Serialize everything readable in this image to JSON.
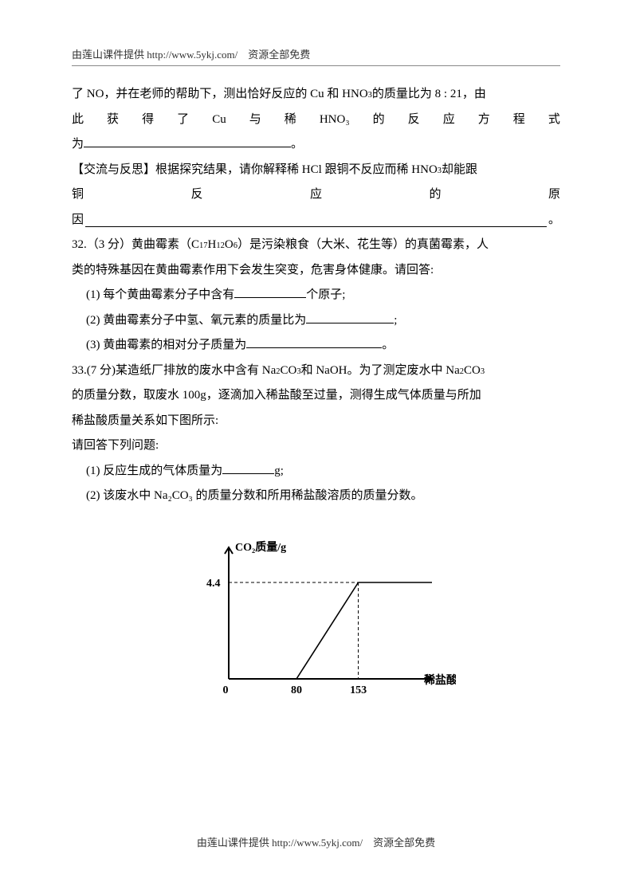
{
  "header_text": "由莲山课件提供 http://www.5ykj.com/　资源全部免费",
  "footer_text": "由莲山课件提供 http://www.5ykj.com/　资源全部免费",
  "p31": {
    "line1_prefix": "了 NO，并在老师的帮助下，测出恰好反应的 Cu 和 HNO",
    "line1_sub": "3",
    "line1_suffix": " 的质量比为 8 : 21，由",
    "line2_chars": [
      "此",
      "获",
      "得",
      "了",
      "Cu",
      "与",
      "稀",
      "HNO₃",
      "的",
      "反",
      "应",
      "方",
      "程",
      "式"
    ],
    "line3_prefix": "为",
    "line3_period": "。",
    "exchange_label": "【交流与反思】",
    "exchange_text_a": "根据探究结果，请你解释稀 HCl 跟铜不反应而稀 HNO",
    "exchange_sub": "3",
    "exchange_text_b": " 却能跟",
    "line5_chars": [
      "铜",
      "反",
      "应",
      "的",
      "原"
    ],
    "line6_prefix": "因",
    "line6_period": "。"
  },
  "q32": {
    "num": "32.",
    "pts": "（3 分）",
    "lead_a": "黄曲霉素（C",
    "sub1": "17",
    "lead_b": "H",
    "sub2": "12",
    "lead_c": "O",
    "sub3": "6",
    "lead_d": "）是污染粮食（大米、花生等）的真菌霉素，人",
    "line2": "类的特殊基因在黄曲霉素作用下会发生突变，危害身体健康。请回答:",
    "i1_a": "(1) 每个黄曲霉素分子中含有",
    "i1_b": "个原子;",
    "i2_a": "(2) 黄曲霉素分子中氢、氧元素的质量比为",
    "i2_b": ";",
    "i3_a": "(3) 黄曲霉素的相对分子质量为",
    "i3_b": "。"
  },
  "q33": {
    "num": "33.",
    "pts": "(7 分)",
    "lead_a": "某造纸厂排放的废水中含有 Na",
    "sub1": "2",
    "lead_b": "CO",
    "sub2": "3",
    "lead_c": " 和 NaOH。为了测定废水中 Na",
    "sub3": "2",
    "lead_d": "CO",
    "sub4": "3",
    "line2": "的质量分数，取废水 100g，逐滴加入稀盐酸至过量，测得生成气体质量与所加",
    "line3": "稀盐酸质量关系如下图所示:",
    "line4": "请回答下列问题:",
    "i1_a": "(1) 反应生成的气体质量为",
    "i1_b": "g;",
    "i2": "(2) 该废水中 Na₂CO₃ 的质量分数和所用稀盐酸溶质的质量分数。"
  },
  "chart": {
    "type": "line",
    "y_label": "CO₂质量/g",
    "x_label": "稀盐酸质量/g",
    "y_tick_value": "4.4",
    "x_tick_origin": "0",
    "x_tick_1": "80",
    "x_tick_2": "153",
    "axis_color": "#000000",
    "dash_color": "#000000",
    "data_segments": [
      {
        "x1": 80,
        "y1": 0,
        "x2": 153,
        "y2": 4.4
      },
      {
        "x1": 153,
        "y1": 4.4,
        "x2": 240,
        "y2": 4.4
      }
    ],
    "xlim": [
      0,
      240
    ],
    "ylim": [
      0,
      6.0
    ],
    "axis_width": 2.0,
    "data_line_width": 1.6,
    "dash_pattern": "4,3",
    "tick_fontsize": 14,
    "label_fontsize": 14
  }
}
